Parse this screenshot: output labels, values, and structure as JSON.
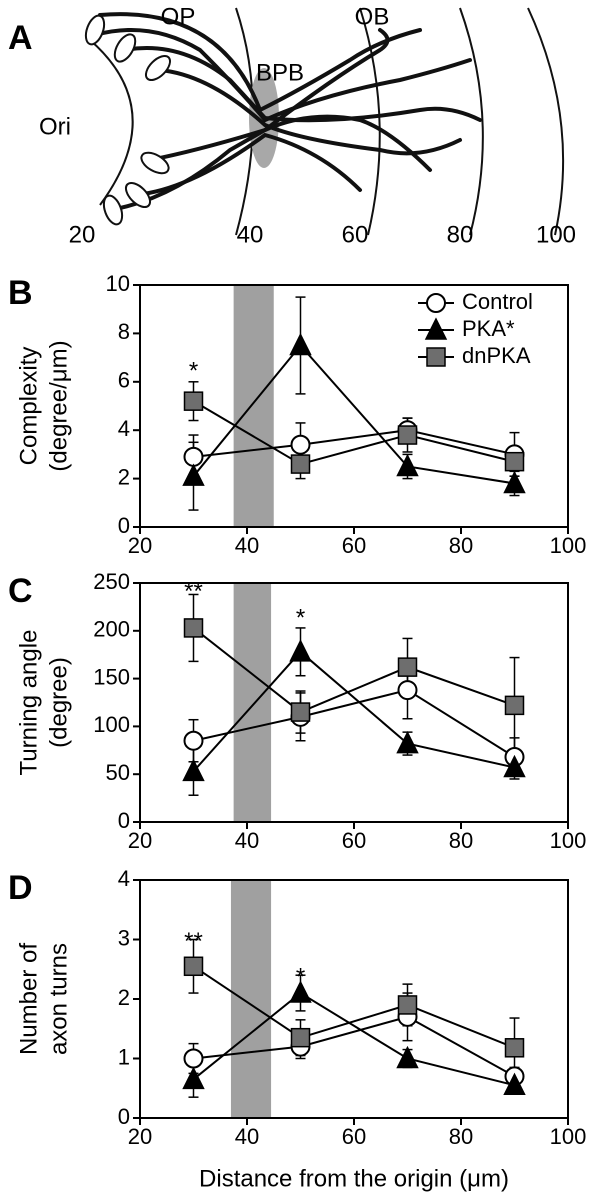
{
  "diagram": {
    "panel": "A",
    "labels": {
      "op": "OP",
      "ob": "OB",
      "bpb": "BPB",
      "ori": "Ori"
    },
    "scale_labels": [
      "20",
      "40",
      "60",
      "80",
      "100"
    ]
  },
  "chart_data": [
    {
      "type": "line",
      "panel": "B",
      "ylabel": [
        "Complexity",
        "(degree/μm)"
      ],
      "x": [
        30,
        50,
        70,
        90
      ],
      "xlim": [
        20,
        100
      ],
      "xticks": [
        20,
        40,
        60,
        80,
        100
      ],
      "ylim": [
        0,
        10
      ],
      "yticks": [
        0,
        2,
        4,
        6,
        8,
        10
      ],
      "band": [
        37.5,
        45
      ],
      "band_color": "#a0a0a0",
      "legend": "upper right",
      "series": [
        {
          "name": "Control",
          "color": "#ffffff",
          "marker": "circle",
          "values": [
            2.9,
            3.4,
            4.0,
            3.0
          ],
          "errors": [
            0.9,
            0.9,
            0.5,
            0.9
          ]
        },
        {
          "name": "PKA*",
          "color": "#000000",
          "marker": "triangle",
          "values": [
            2.1,
            7.5,
            2.5,
            1.8
          ],
          "errors": [
            1.4,
            2.0,
            0.5,
            0.5
          ]
        },
        {
          "name": "dnPKA",
          "color": "#6e6e6e",
          "marker": "square",
          "values": [
            5.2,
            2.6,
            3.8,
            2.7
          ],
          "errors": [
            0.8,
            0.6,
            0.7,
            0.6
          ]
        }
      ],
      "annotations": [
        {
          "text": "*",
          "x": 30,
          "y": 6.4
        }
      ]
    },
    {
      "type": "line",
      "panel": "C",
      "ylabel": [
        "Turning angle",
        "(degree)"
      ],
      "x": [
        30,
        50,
        70,
        90
      ],
      "xlim": [
        20,
        100
      ],
      "xticks": [
        20,
        40,
        60,
        80,
        100
      ],
      "ylim": [
        0,
        250
      ],
      "yticks": [
        0,
        50,
        100,
        150,
        200,
        250
      ],
      "band": [
        37.5,
        44.5
      ],
      "band_color": "#a0a0a0",
      "series": [
        {
          "name": "Control",
          "color": "#ffffff",
          "marker": "circle",
          "values": [
            85,
            110,
            138,
            68
          ],
          "errors": [
            22,
            25,
            30,
            20
          ]
        },
        {
          "name": "PKA*",
          "color": "#000000",
          "marker": "triangle",
          "values": [
            53,
            178,
            82,
            57
          ],
          "errors": [
            25,
            25,
            12,
            12
          ]
        },
        {
          "name": "dnPKA",
          "color": "#6e6e6e",
          "marker": "square",
          "values": [
            203,
            115,
            162,
            122
          ],
          "errors": [
            35,
            22,
            30,
            50
          ]
        }
      ],
      "annotations": [
        {
          "text": "**",
          "x": 30,
          "y": 240
        },
        {
          "text": "*",
          "x": 50,
          "y": 212
        }
      ]
    },
    {
      "type": "line",
      "panel": "D",
      "ylabel": [
        "Number of",
        "axon turns"
      ],
      "xlabel": "Distance from the origin (μm)",
      "x": [
        30,
        50,
        70,
        90
      ],
      "xlim": [
        20,
        100
      ],
      "xticks": [
        20,
        40,
        60,
        80,
        100
      ],
      "ylim": [
        0,
        4
      ],
      "yticks": [
        0,
        1,
        2,
        3,
        4
      ],
      "band": [
        37,
        44.5
      ],
      "band_color": "#a0a0a0",
      "series": [
        {
          "name": "Control",
          "color": "#ffffff",
          "marker": "circle",
          "values": [
            1.0,
            1.2,
            1.7,
            0.7
          ],
          "errors": [
            0.25,
            0.2,
            0.4,
            0.15
          ]
        },
        {
          "name": "PKA*",
          "color": "#000000",
          "marker": "triangle",
          "values": [
            0.65,
            2.1,
            1.0,
            0.55
          ],
          "errors": [
            0.3,
            0.3,
            0.15,
            0.1
          ]
        },
        {
          "name": "dnPKA",
          "color": "#6e6e6e",
          "marker": "square",
          "values": [
            2.55,
            1.35,
            1.9,
            1.18
          ],
          "errors": [
            0.45,
            0.3,
            0.35,
            0.5
          ]
        }
      ],
      "annotations": [
        {
          "text": "**",
          "x": 30,
          "y": 2.95
        },
        {
          "text": "*",
          "x": 50,
          "y": 2.35
        }
      ]
    }
  ]
}
